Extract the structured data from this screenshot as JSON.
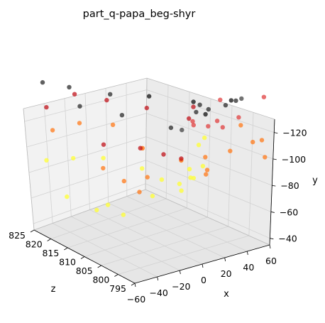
{
  "chart_data": {
    "type": "scatter",
    "projection": "3d",
    "title": "part_q-papa_beg-shyr",
    "xlabel": "x",
    "ylabel": "y",
    "zlabel": "z",
    "xticks": [
      "−60",
      "−40",
      "−20",
      "0",
      "20",
      "40",
      "60"
    ],
    "yticks": [
      "−40",
      "−60",
      "−80",
      "−100",
      "−120"
    ],
    "zticks": [
      "795",
      "800",
      "805",
      "810",
      "815",
      "820",
      "825"
    ],
    "xlim": [
      -65,
      65
    ],
    "ylim": [
      -130,
      -35
    ],
    "zlim": [
      794,
      827
    ],
    "y_axis_inverted": true,
    "colormap": "hot (by point group)",
    "grid": true,
    "points": [
      {
        "x": -55,
        "y": -125,
        "z": 825,
        "c": "#2b2b2b"
      },
      {
        "x": -40,
        "y": -123,
        "z": 822,
        "c": "#2b2b2b"
      },
      {
        "x": -15,
        "y": -119,
        "z": 818,
        "c": "#2b2b2b"
      },
      {
        "x": 5,
        "y": -120,
        "z": 813,
        "c": "#111111"
      },
      {
        "x": 30,
        "y": -118,
        "z": 808,
        "c": "#111111"
      },
      {
        "x": 50,
        "y": -122,
        "z": 802,
        "c": "#2b2b2b"
      },
      {
        "x": 52,
        "y": -124,
        "z": 801,
        "c": "#444444"
      },
      {
        "x": 50,
        "y": -116,
        "z": 805,
        "c": "#2b2b2b"
      },
      {
        "x": 42,
        "y": -112,
        "z": 810,
        "c": "#2b2b2b"
      },
      {
        "x": 55,
        "y": -118,
        "z": 805,
        "c": "#111111"
      },
      {
        "x": 45,
        "y": -105,
        "z": 812,
        "c": "#2b2b2b"
      },
      {
        "x": 50,
        "y": -108,
        "z": 810,
        "c": "#2b2b2b"
      },
      {
        "x": -30,
        "y": -110,
        "z": 822,
        "c": "#2b2b2b"
      },
      {
        "x": -10,
        "y": -108,
        "z": 816,
        "c": "#2b2b2b"
      },
      {
        "x": 10,
        "y": -106,
        "z": 808,
        "c": "#2b2b2b"
      },
      {
        "x": 20,
        "y": -103,
        "z": 808,
        "c": "#444444"
      },
      {
        "x": 35,
        "y": -112,
        "z": 806,
        "c": "#111111"
      },
      {
        "x": -48,
        "y": -108,
        "z": 826,
        "c": "#c0141c"
      },
      {
        "x": -35,
        "y": -118,
        "z": 822,
        "c": "#c0141c"
      },
      {
        "x": -18,
        "y": -116,
        "z": 818,
        "c": "#c0141c"
      },
      {
        "x": 0,
        "y": -115,
        "z": 812,
        "c": "#c0141c"
      },
      {
        "x": 20,
        "y": -112,
        "z": 806,
        "c": "#c0141c"
      },
      {
        "x": 45,
        "y": -120,
        "z": 805,
        "c": "#e04040"
      },
      {
        "x": 60,
        "y": -128,
        "z": 797,
        "c": "#e04040"
      },
      {
        "x": 56,
        "y": -110,
        "z": 803,
        "c": "#e04040"
      },
      {
        "x": 42,
        "y": -100,
        "z": 812,
        "c": "#e04040"
      },
      {
        "x": 50,
        "y": -98,
        "z": 810,
        "c": "#e04040"
      },
      {
        "x": 46,
        "y": -96,
        "z": 813,
        "c": "#e04040"
      },
      {
        "x": 52,
        "y": -103,
        "z": 808,
        "c": "#e04040"
      },
      {
        "x": 54,
        "y": -100,
        "z": 807,
        "c": "#e04040"
      },
      {
        "x": -20,
        "y": -90,
        "z": 818,
        "c": "#c0141c"
      },
      {
        "x": -5,
        "y": -92,
        "z": 812,
        "c": "#c0141c"
      },
      {
        "x": 10,
        "y": -88,
        "z": 810,
        "c": "#c0141c"
      },
      {
        "x": 20,
        "y": -86,
        "z": 808,
        "c": "#c0141c"
      },
      {
        "x": 30,
        "y": -115,
        "z": 808,
        "c": "#c0141c"
      },
      {
        "x": -45,
        "y": -95,
        "z": 825,
        "c": "#ff7a1a"
      },
      {
        "x": -30,
        "y": -100,
        "z": 822,
        "c": "#ff7a1a"
      },
      {
        "x": -15,
        "y": -102,
        "z": 817,
        "c": "#ff7a1a"
      },
      {
        "x": 0,
        "y": -90,
        "z": 813,
        "c": "#ff6a00"
      },
      {
        "x": 20,
        "y": -85,
        "z": 808,
        "c": "#ff6a00"
      },
      {
        "x": 55,
        "y": -88,
        "z": 805,
        "c": "#ff7a1a"
      },
      {
        "x": 60,
        "y": -98,
        "z": 800,
        "c": "#ff7a1a"
      },
      {
        "x": 62,
        "y": -101,
        "z": 798,
        "c": "#ff7a1a"
      },
      {
        "x": 58,
        "y": -105,
        "z": 803,
        "c": "#ff7a1a"
      },
      {
        "x": 62,
        "y": -92,
        "z": 797,
        "c": "#ff7a1a"
      },
      {
        "x": 48,
        "y": -80,
        "z": 810,
        "c": "#ff7a1a"
      },
      {
        "x": 50,
        "y": -72,
        "z": 810,
        "c": "#ff7a1a"
      },
      {
        "x": 52,
        "y": -68,
        "z": 811,
        "c": "#ff7a1a"
      },
      {
        "x": -20,
        "y": -76,
        "z": 818,
        "c": "#ff7a1a"
      },
      {
        "x": -10,
        "y": -70,
        "z": 815,
        "c": "#ff7a1a"
      },
      {
        "x": 5,
        "y": -72,
        "z": 813,
        "c": "#ff7a1a"
      },
      {
        "x": -5,
        "y": -66,
        "z": 812,
        "c": "#ff7a1a"
      },
      {
        "x": -50,
        "y": -78,
        "z": 825,
        "c": "#ffff33"
      },
      {
        "x": -35,
        "y": -80,
        "z": 822,
        "c": "#ffff33"
      },
      {
        "x": -20,
        "y": -82,
        "z": 818,
        "c": "#ffff33"
      },
      {
        "x": 0,
        "y": -78,
        "z": 813,
        "c": "#ffff33"
      },
      {
        "x": 15,
        "y": -70,
        "z": 812,
        "c": "#ffff33"
      },
      {
        "x": 25,
        "y": -68,
        "z": 810,
        "c": "#ffff33"
      },
      {
        "x": 35,
        "y": -70,
        "z": 810,
        "c": "#ffff33"
      },
      {
        "x": 40,
        "y": -72,
        "z": 812,
        "c": "#ffff33"
      },
      {
        "x": 46,
        "y": -75,
        "z": 810,
        "c": "#ffff33"
      },
      {
        "x": 48,
        "y": -85,
        "z": 812,
        "c": "#ffff33"
      },
      {
        "x": 50,
        "y": -90,
        "z": 811,
        "c": "#ffff33"
      },
      {
        "x": 44,
        "y": -66,
        "z": 812,
        "c": "#ffff33"
      },
      {
        "x": -25,
        "y": -52,
        "z": 818,
        "c": "#ffff33"
      },
      {
        "x": -18,
        "y": -55,
        "z": 817,
        "c": "#ffff33"
      },
      {
        "x": -10,
        "y": -50,
        "z": 815,
        "c": "#ffff33"
      },
      {
        "x": 10,
        "y": -60,
        "z": 813,
        "c": "#ffff33"
      },
      {
        "x": 30,
        "y": -62,
        "z": 811,
        "c": "#ffff33"
      },
      {
        "x": -40,
        "y": -58,
        "z": 822,
        "c": "#ffff33"
      }
    ]
  }
}
